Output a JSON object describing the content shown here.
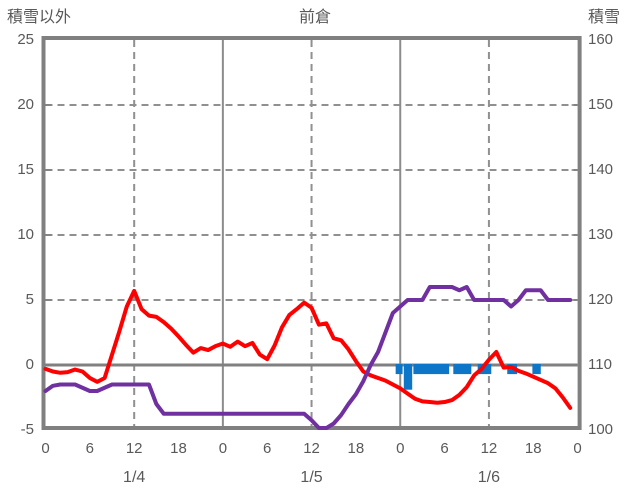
{
  "header": {
    "left_axis_title": "積雪以外",
    "chart_title": "前倉",
    "right_axis_title": "積雪"
  },
  "colors": {
    "temperature_line": "#ff0000",
    "snow_line": "#7030a0",
    "precip_bar": "#0e76c8",
    "axis_border": "#808080",
    "grid_dashed": "#909090",
    "day_divider": "#8c8c8c",
    "zero_line": "#808080",
    "text": "#595959",
    "background": "#ffffff"
  },
  "chart_data": {
    "type": "line",
    "title": "前倉",
    "left_axis": {
      "title": "積雪以外",
      "min": -5,
      "max": 25,
      "ticks": [
        25,
        20,
        15,
        10,
        5,
        0,
        -5
      ],
      "dashed_gridlines_at": [
        20,
        15,
        10,
        5
      ],
      "solid_line_at": 0
    },
    "right_axis": {
      "title": "積雪",
      "min": 100,
      "max": 160,
      "ticks": [
        160,
        150,
        140,
        130,
        120,
        110,
        100
      ]
    },
    "x_axis": {
      "hours_total": 72,
      "tick_interval_hours": 6,
      "hour_tick_labels": [
        "0",
        "6",
        "12",
        "18",
        "0",
        "6",
        "12",
        "18",
        "0",
        "6",
        "12",
        "18",
        "0"
      ],
      "day_labels": [
        "1/4",
        "1/5",
        "1/6"
      ],
      "dashed_gridlines_at_hours": [
        12,
        36,
        60
      ],
      "solid_gridlines_at_hours": [
        24,
        48
      ]
    },
    "series": [
      {
        "name": "temperature",
        "type": "line",
        "axis": "left",
        "color": "#ff0000",
        "values": [
          -0.3,
          -0.5,
          -0.6,
          -0.55,
          -0.35,
          -0.5,
          -1.0,
          -1.3,
          -1.0,
          0.8,
          2.6,
          4.5,
          5.7,
          4.3,
          3.8,
          3.7,
          3.3,
          2.8,
          2.2,
          1.55,
          0.95,
          1.3,
          1.15,
          1.45,
          1.65,
          1.4,
          1.8,
          1.45,
          1.7,
          0.8,
          0.45,
          1.5,
          2.9,
          3.85,
          4.3,
          4.8,
          4.4,
          3.1,
          3.2,
          2.05,
          1.9,
          1.2,
          0.3,
          -0.5,
          -0.8,
          -1.0,
          -1.2,
          -1.5,
          -1.8,
          -2.2,
          -2.6,
          -2.8,
          -2.85,
          -2.9,
          -2.85,
          -2.7,
          -2.3,
          -1.7,
          -0.8,
          -0.3,
          0.4,
          1.0,
          -0.2,
          -0.15,
          -0.45,
          -0.65,
          -0.9,
          -1.15,
          -1.4,
          -1.8,
          -2.5,
          -3.3
        ]
      },
      {
        "name": "snow_depth",
        "type": "line",
        "axis": "right",
        "color": "#7030a0",
        "values": [
          106,
          106.8,
          107,
          107,
          107,
          106.5,
          106,
          106,
          106.5,
          107,
          107,
          107,
          107,
          107,
          107,
          104,
          102.5,
          102.5,
          102.5,
          102.5,
          102.5,
          102.5,
          102.5,
          102.5,
          102.5,
          102.5,
          102.5,
          102.5,
          102.5,
          102.5,
          102.5,
          102.5,
          102.5,
          102.5,
          102.5,
          102.5,
          101.5,
          100.3,
          100.3,
          101,
          102.3,
          104,
          105.5,
          107.5,
          110,
          112,
          115,
          118,
          119,
          120,
          120,
          120,
          122,
          122,
          122,
          122,
          121.5,
          122,
          120,
          120,
          120,
          120,
          120,
          119,
          120,
          121.5,
          121.5,
          121.5,
          120,
          120,
          120,
          120
        ]
      },
      {
        "name": "precipitation",
        "type": "bar",
        "axis": "left",
        "direction": "down-from-zero",
        "color": "#0e76c8",
        "segments": [
          {
            "start_hour": 47.3,
            "end_hour": 48.4,
            "depth": 0.7
          },
          {
            "start_hour": 48.4,
            "end_hour": 49.7,
            "depth": 1.9
          },
          {
            "start_hour": 49.7,
            "end_hour": 54.7,
            "depth": 0.7
          },
          {
            "start_hour": 55.1,
            "end_hour": 57.7,
            "depth": 0.7
          },
          {
            "start_hour": 58.4,
            "end_hour": 60.4,
            "depth": 0.7
          },
          {
            "start_hour": 62.4,
            "end_hour": 63.9,
            "depth": 0.7
          },
          {
            "start_hour": 65.8,
            "end_hour": 67.1,
            "depth": 0.7
          }
        ]
      }
    ]
  }
}
